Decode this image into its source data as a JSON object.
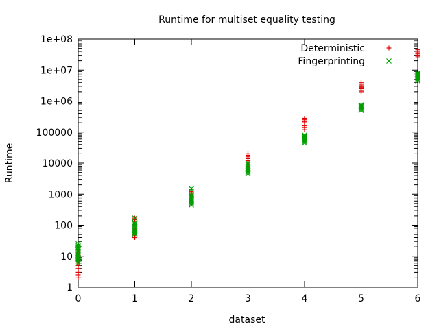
{
  "chart_data": {
    "type": "scatter",
    "title": "Runtime for multiset equality testing",
    "xlabel": "dataset",
    "ylabel": "Runtime",
    "xlim": [
      0,
      6
    ],
    "ylim": [
      1,
      100000000
    ],
    "yscale": "log",
    "grid": false,
    "legend_position": "top-right",
    "xticks": [
      0,
      1,
      2,
      3,
      4,
      5,
      6
    ],
    "xtick_labels": [
      "0",
      "1",
      "2",
      "3",
      "4",
      "5",
      "6"
    ],
    "yticks": [
      1,
      10,
      100,
      1000,
      10000,
      100000,
      1000000,
      10000000,
      100000000
    ],
    "ytick_labels": [
      "1",
      "10",
      "100",
      "1000",
      "10000",
      "100000",
      "1e+06",
      "1e+07",
      "1e+08"
    ],
    "series": [
      {
        "name": "Deterministic",
        "marker": "plus",
        "color": "#e00000",
        "points": [
          [
            0,
            2
          ],
          [
            0,
            2.5
          ],
          [
            0,
            3
          ],
          [
            0,
            4
          ],
          [
            0,
            5
          ],
          [
            0,
            6
          ],
          [
            0,
            7
          ],
          [
            0,
            8
          ],
          [
            0,
            9
          ],
          [
            0,
            10
          ],
          [
            0,
            11
          ],
          [
            0,
            12
          ],
          [
            0,
            14
          ],
          [
            0,
            16
          ],
          [
            0,
            20
          ],
          [
            1,
            40
          ],
          [
            1,
            45
          ],
          [
            1,
            50
          ],
          [
            1,
            60
          ],
          [
            1,
            70
          ],
          [
            1,
            80
          ],
          [
            1,
            100
          ],
          [
            1,
            150
          ],
          [
            1,
            170
          ],
          [
            2,
            600
          ],
          [
            2,
            700
          ],
          [
            2,
            800
          ],
          [
            2,
            900
          ],
          [
            2,
            1000
          ],
          [
            2,
            1100
          ],
          [
            2,
            1200
          ],
          [
            2,
            1400
          ],
          [
            3,
            6000
          ],
          [
            3,
            7000
          ],
          [
            3,
            8000
          ],
          [
            3,
            9000
          ],
          [
            3,
            10000
          ],
          [
            3,
            11000
          ],
          [
            3,
            12000
          ],
          [
            3,
            14000
          ],
          [
            3,
            16000
          ],
          [
            3,
            18000
          ],
          [
            3,
            20000
          ],
          [
            4,
            120000
          ],
          [
            4,
            140000
          ],
          [
            4,
            160000
          ],
          [
            4,
            200000
          ],
          [
            4,
            220000
          ],
          [
            4,
            250000
          ],
          [
            4,
            280000
          ],
          [
            5,
            2000000
          ],
          [
            5,
            2200000
          ],
          [
            5,
            2500000
          ],
          [
            5,
            2800000
          ],
          [
            5,
            3000000
          ],
          [
            5,
            3300000
          ],
          [
            5,
            3600000
          ],
          [
            5,
            4000000
          ],
          [
            6,
            25000000
          ],
          [
            6,
            28000000
          ],
          [
            6,
            30000000
          ],
          [
            6,
            33000000
          ],
          [
            6,
            36000000
          ],
          [
            6,
            40000000
          ],
          [
            6,
            45000000
          ]
        ]
      },
      {
        "name": "Fingerprinting",
        "marker": "cross",
        "color": "#00a000",
        "points": [
          [
            0,
            6
          ],
          [
            0,
            7
          ],
          [
            0,
            8
          ],
          [
            0,
            9
          ],
          [
            0,
            10
          ],
          [
            0,
            11
          ],
          [
            0,
            12
          ],
          [
            0,
            14
          ],
          [
            0,
            16
          ],
          [
            0,
            18
          ],
          [
            0,
            20
          ],
          [
            0,
            22
          ],
          [
            0,
            25
          ],
          [
            1,
            50
          ],
          [
            1,
            55
          ],
          [
            1,
            60
          ],
          [
            1,
            65
          ],
          [
            1,
            70
          ],
          [
            1,
            80
          ],
          [
            1,
            90
          ],
          [
            1,
            100
          ],
          [
            1,
            110
          ],
          [
            1,
            120
          ],
          [
            1,
            170
          ],
          [
            2,
            450
          ],
          [
            2,
            500
          ],
          [
            2,
            550
          ],
          [
            2,
            600
          ],
          [
            2,
            650
          ],
          [
            2,
            700
          ],
          [
            2,
            800
          ],
          [
            2,
            900
          ],
          [
            2,
            1000
          ],
          [
            2,
            1500
          ],
          [
            3,
            4500
          ],
          [
            3,
            5000
          ],
          [
            3,
            5500
          ],
          [
            3,
            6000
          ],
          [
            3,
            6500
          ],
          [
            3,
            7000
          ],
          [
            3,
            8000
          ],
          [
            3,
            9000
          ],
          [
            3,
            10000
          ],
          [
            4,
            45000
          ],
          [
            4,
            50000
          ],
          [
            4,
            55000
          ],
          [
            4,
            60000
          ],
          [
            4,
            65000
          ],
          [
            4,
            70000
          ],
          [
            4,
            75000
          ],
          [
            4,
            80000
          ],
          [
            5,
            500000
          ],
          [
            5,
            550000
          ],
          [
            5,
            600000
          ],
          [
            5,
            650000
          ],
          [
            5,
            700000
          ],
          [
            5,
            750000
          ],
          [
            6,
            4500000
          ],
          [
            6,
            5000000
          ],
          [
            6,
            5500000
          ],
          [
            6,
            6000000
          ],
          [
            6,
            6500000
          ],
          [
            6,
            7000000
          ],
          [
            6,
            7500000
          ],
          [
            6,
            8000000
          ]
        ]
      }
    ]
  }
}
